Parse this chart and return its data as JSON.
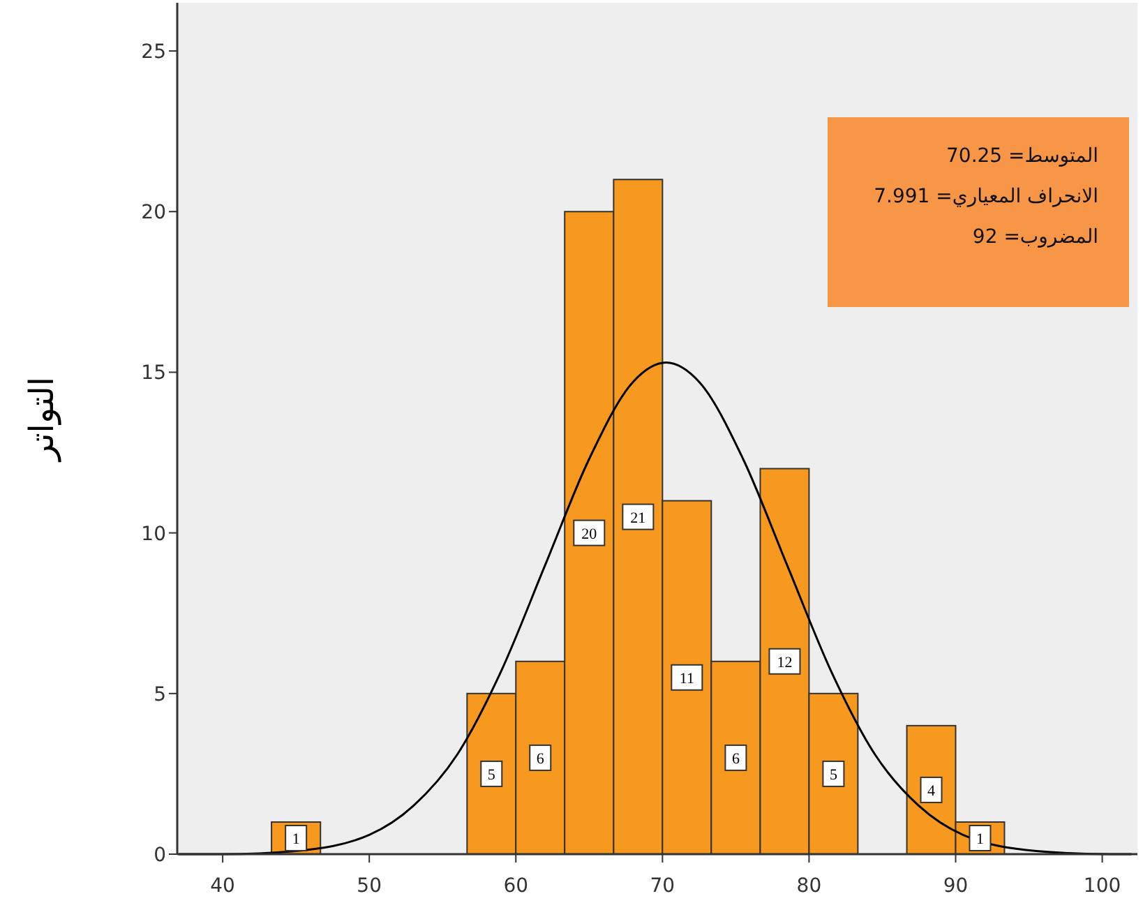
{
  "chart_data": {
    "type": "histogram",
    "ylabel": "التواتر",
    "annotations": [
      "المتوسط= 70.25",
      "الانحراف المعياري= 7.991",
      "المضروب= 92"
    ],
    "bins": [
      43.33,
      46.67,
      50,
      53.33,
      56.67,
      60,
      63.33,
      66.67,
      70,
      73.33,
      76.67,
      80,
      83.33,
      86.67,
      90,
      93.33
    ],
    "series": [
      {
        "color": "#f7991f",
        "values": [
          1,
          0,
          0,
          0,
          5,
          6,
          20,
          21,
          11,
          6,
          12,
          5,
          0,
          4,
          1
        ],
        "value_labels": [
          "1",
          null,
          null,
          null,
          "5",
          "6",
          "20",
          "21",
          "11",
          "6",
          "12",
          "5",
          null,
          "4",
          "1"
        ]
      },
      {
        "type": "line",
        "color": "#000000",
        "x": [
          37,
          40,
          45,
          50,
          53,
          56,
          59,
          62,
          65,
          68,
          70.25,
          72.5,
          75.5,
          78.5,
          81.5,
          84.5,
          87.5,
          90.5,
          95.5,
          100.5,
          102
        ],
        "values": [
          0,
          0,
          0.1,
          0.6,
          1.5,
          3.1,
          5.7,
          9,
          12.3,
          14.7,
          15.3,
          14.7,
          12.3,
          9,
          5.7,
          3.1,
          1.5,
          0.6,
          0.1,
          0,
          0
        ]
      }
    ],
    "xlim": [
      36.9,
      102.4
    ],
    "ylim": [
      0,
      26.5
    ],
    "xticks": [
      40,
      50,
      60,
      70,
      80,
      90,
      100
    ],
    "yticks": [
      0,
      5,
      10,
      15,
      20,
      25
    ]
  }
}
